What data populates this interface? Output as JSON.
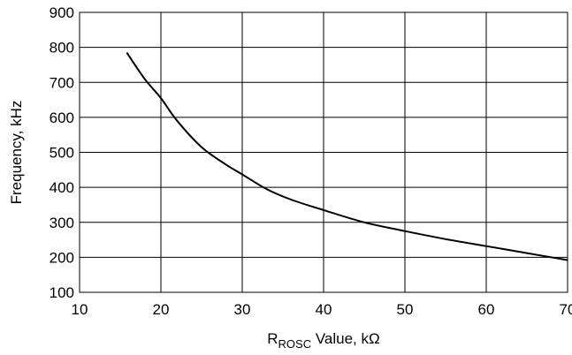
{
  "chart_data": {
    "type": "line",
    "title": "",
    "xlabel_main": "R",
    "xlabel_sub": "ROSC",
    "xlabel_rest": " Value, kΩ",
    "ylabel": "Frequency, kHz",
    "xlim": [
      10,
      70
    ],
    "ylim": [
      100,
      900
    ],
    "xticks": [
      10,
      20,
      30,
      40,
      50,
      60,
      70
    ],
    "yticks": [
      100,
      200,
      300,
      400,
      500,
      600,
      700,
      800,
      900
    ],
    "grid": true,
    "legend": "none",
    "series": [
      {
        "x": [
          15.8,
          18,
          20,
          22,
          25,
          28,
          30,
          33,
          36,
          40,
          45,
          50,
          55,
          60,
          65,
          70
        ],
        "y": [
          785,
          710,
          655,
          590,
          515,
          465,
          437,
          395,
          365,
          335,
          300,
          275,
          252,
          232,
          212,
          192
        ]
      }
    ]
  }
}
